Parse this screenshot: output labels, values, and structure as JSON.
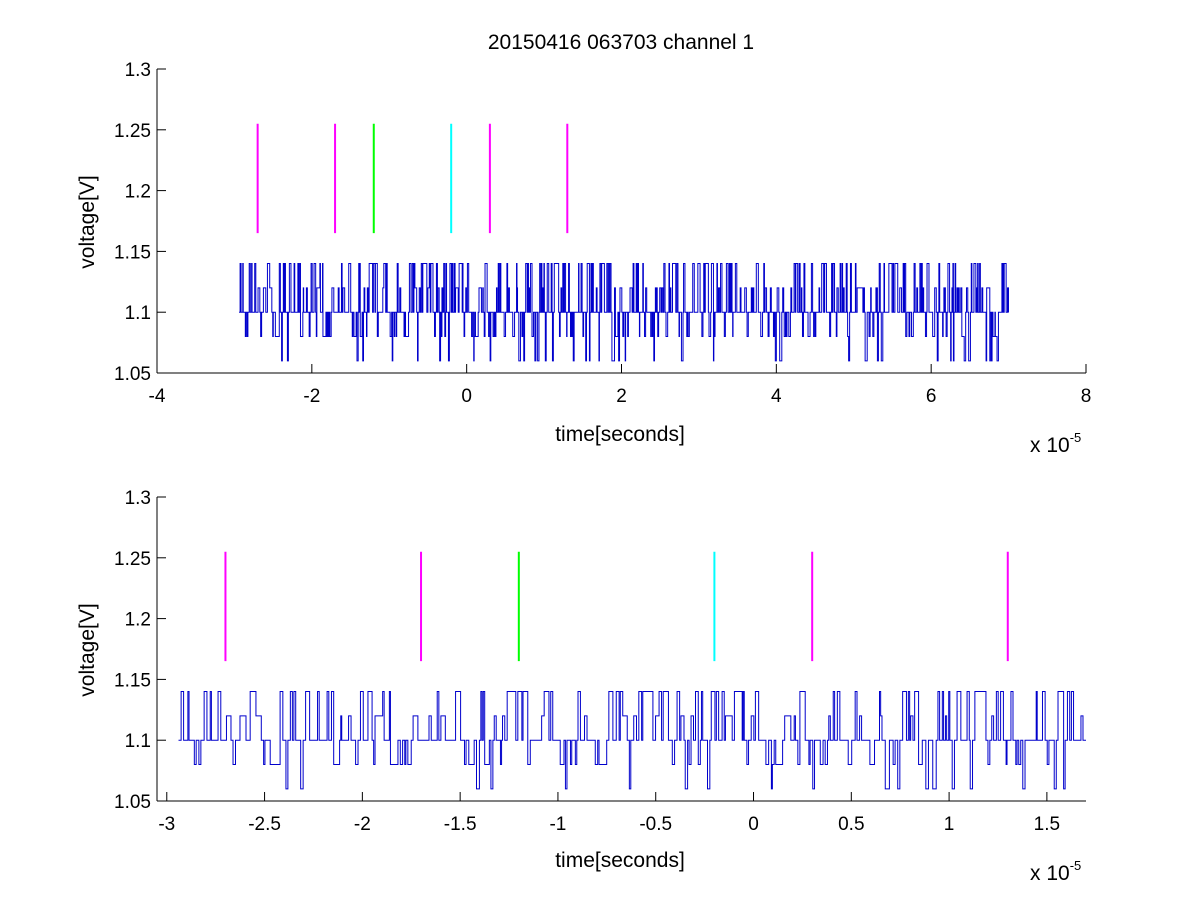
{
  "chart_data": [
    {
      "type": "line",
      "title": "20150416 063703 channel 1",
      "xlabel": "time[seconds]",
      "ylabel": "voltage[V]",
      "x_multiplier": "x 10",
      "x_exponent": "-5",
      "xlim": [
        -4,
        8
      ],
      "ylim": [
        1.05,
        1.3
      ],
      "xticks": [
        -4,
        -2,
        0,
        2,
        4,
        6,
        8
      ],
      "xtick_labels": [
        "-4",
        "-2",
        "0",
        "2",
        "4",
        "6",
        "8"
      ],
      "yticks": [
        1.05,
        1.1,
        1.15,
        1.2,
        1.25,
        1.3
      ],
      "ytick_labels": [
        "1.05",
        "1.1",
        "1.15",
        "1.2",
        "1.25",
        "1.3"
      ],
      "grid": false,
      "signal": {
        "color": "#0000cc",
        "x_start": -2.94,
        "x_end": 7.0,
        "baseline": 1.1,
        "levels": [
          1.06,
          1.08,
          1.1,
          1.12,
          1.14
        ]
      },
      "markers": [
        {
          "x": -2.7,
          "y_from": 1.165,
          "y_to": 1.255,
          "color": "#ff00ff"
        },
        {
          "x": -1.7,
          "y_from": 1.165,
          "y_to": 1.255,
          "color": "#ff00ff"
        },
        {
          "x": -1.2,
          "y_from": 1.165,
          "y_to": 1.255,
          "color": "#00ff00"
        },
        {
          "x": -0.2,
          "y_from": 1.165,
          "y_to": 1.255,
          "color": "#00ffff"
        },
        {
          "x": 0.3,
          "y_from": 1.165,
          "y_to": 1.255,
          "color": "#ff00ff"
        },
        {
          "x": 1.3,
          "y_from": 1.165,
          "y_to": 1.255,
          "color": "#ff00ff"
        }
      ]
    },
    {
      "type": "line",
      "xlabel": "time[seconds]",
      "ylabel": "voltage[V]",
      "x_multiplier": "x 10",
      "x_exponent": "-5",
      "xlim": [
        -3.05,
        1.7
      ],
      "ylim": [
        1.05,
        1.3
      ],
      "xticks": [
        -3,
        -2.5,
        -2,
        -1.5,
        -1,
        -0.5,
        0,
        0.5,
        1,
        1.5
      ],
      "xtick_labels": [
        "-3",
        "-2.5",
        "-2",
        "-1.5",
        "-1",
        "-0.5",
        "0",
        "0.5",
        "1",
        "1.5"
      ],
      "yticks": [
        1.05,
        1.1,
        1.15,
        1.2,
        1.25,
        1.3
      ],
      "ytick_labels": [
        "1.05",
        "1.1",
        "1.15",
        "1.2",
        "1.25",
        "1.3"
      ],
      "grid": false,
      "signal": {
        "color": "#0000cc",
        "x_start": -2.94,
        "x_end": 1.7,
        "baseline": 1.1,
        "levels": [
          1.06,
          1.08,
          1.1,
          1.12,
          1.14
        ]
      },
      "markers": [
        {
          "x": -2.7,
          "y_from": 1.165,
          "y_to": 1.255,
          "color": "#ff00ff"
        },
        {
          "x": -1.7,
          "y_from": 1.165,
          "y_to": 1.255,
          "color": "#ff00ff"
        },
        {
          "x": -1.2,
          "y_from": 1.165,
          "y_to": 1.255,
          "color": "#00ff00"
        },
        {
          "x": -0.2,
          "y_from": 1.165,
          "y_to": 1.255,
          "color": "#00ffff"
        },
        {
          "x": 0.3,
          "y_from": 1.165,
          "y_to": 1.255,
          "color": "#ff00ff"
        },
        {
          "x": 1.3,
          "y_from": 1.165,
          "y_to": 1.255,
          "color": "#ff00ff"
        }
      ]
    }
  ]
}
